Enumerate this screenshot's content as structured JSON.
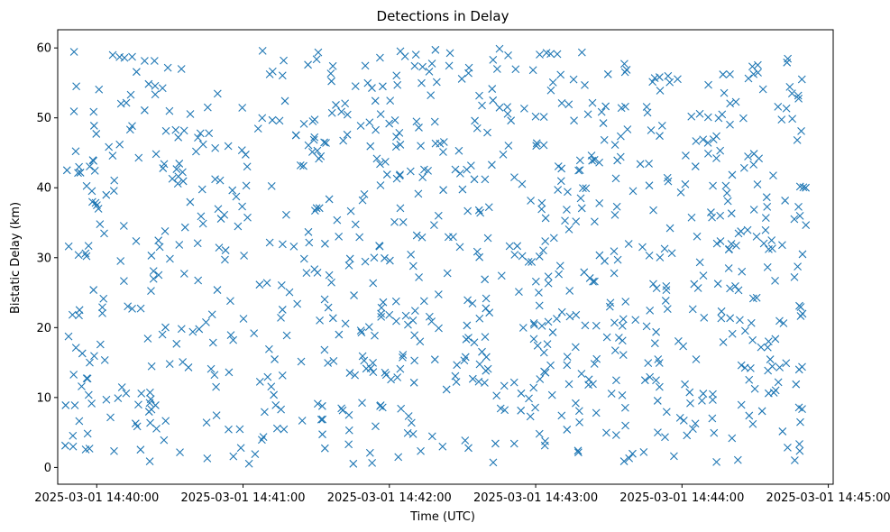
{
  "chart_data": {
    "type": "scatter",
    "title": "Detections in Delay",
    "xlabel": "Time (UTC)",
    "ylabel": "Bistatic Delay (km)",
    "marker": "x",
    "color": "#1f77b4",
    "grid": false,
    "xlim_seconds": [
      -16,
      302
    ],
    "ylim": [
      -2.4,
      62.6
    ],
    "x_ticks": [
      {
        "seconds": 0,
        "label": "2025-03-01 14:40:00"
      },
      {
        "seconds": 60,
        "label": "2025-03-01 14:41:00"
      },
      {
        "seconds": 120,
        "label": "2025-03-01 14:42:00"
      },
      {
        "seconds": 180,
        "label": "2025-03-01 14:43:00"
      },
      {
        "seconds": 240,
        "label": "2025-03-01 14:44:00"
      },
      {
        "seconds": 300,
        "label": "2025-03-01 14:45:00"
      }
    ],
    "y_ticks": [
      0,
      10,
      20,
      30,
      40,
      50,
      60
    ],
    "x_start_time": "2025-03-01 14:39:47",
    "x_end_time": "2025-03-01 14:44:51",
    "point_count": 920
  }
}
